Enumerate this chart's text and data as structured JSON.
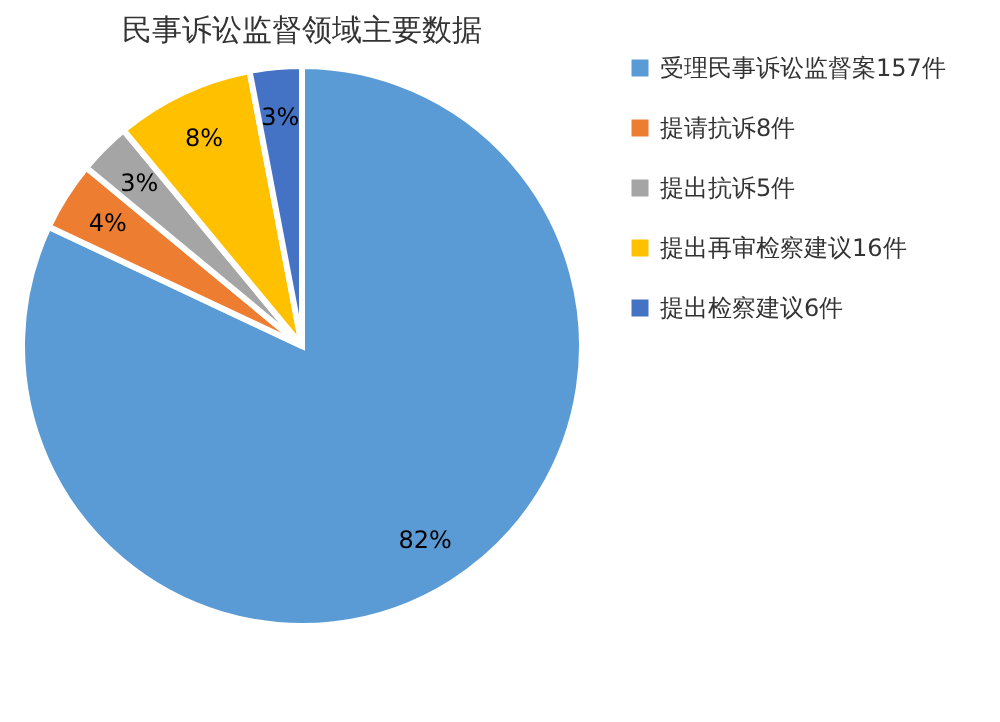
{
  "chart_data": {
    "type": "pie",
    "title": "民事诉讼监督领域主要数据",
    "categories": [
      "受理民事诉讼监督案157件",
      "提请抗诉8件",
      "提出抗诉5件",
      "提出再审检察建议16件",
      "提出检察建议6件"
    ],
    "values": [
      82,
      4,
      3,
      8,
      3
    ],
    "value_labels": [
      "82%",
      "4%",
      "3%",
      "8%",
      "3%"
    ],
    "colors": [
      "#5b9bd5",
      "#ed7d31",
      "#a5a5a5",
      "#ffc000",
      "#4472c4"
    ],
    "legend": "right"
  }
}
